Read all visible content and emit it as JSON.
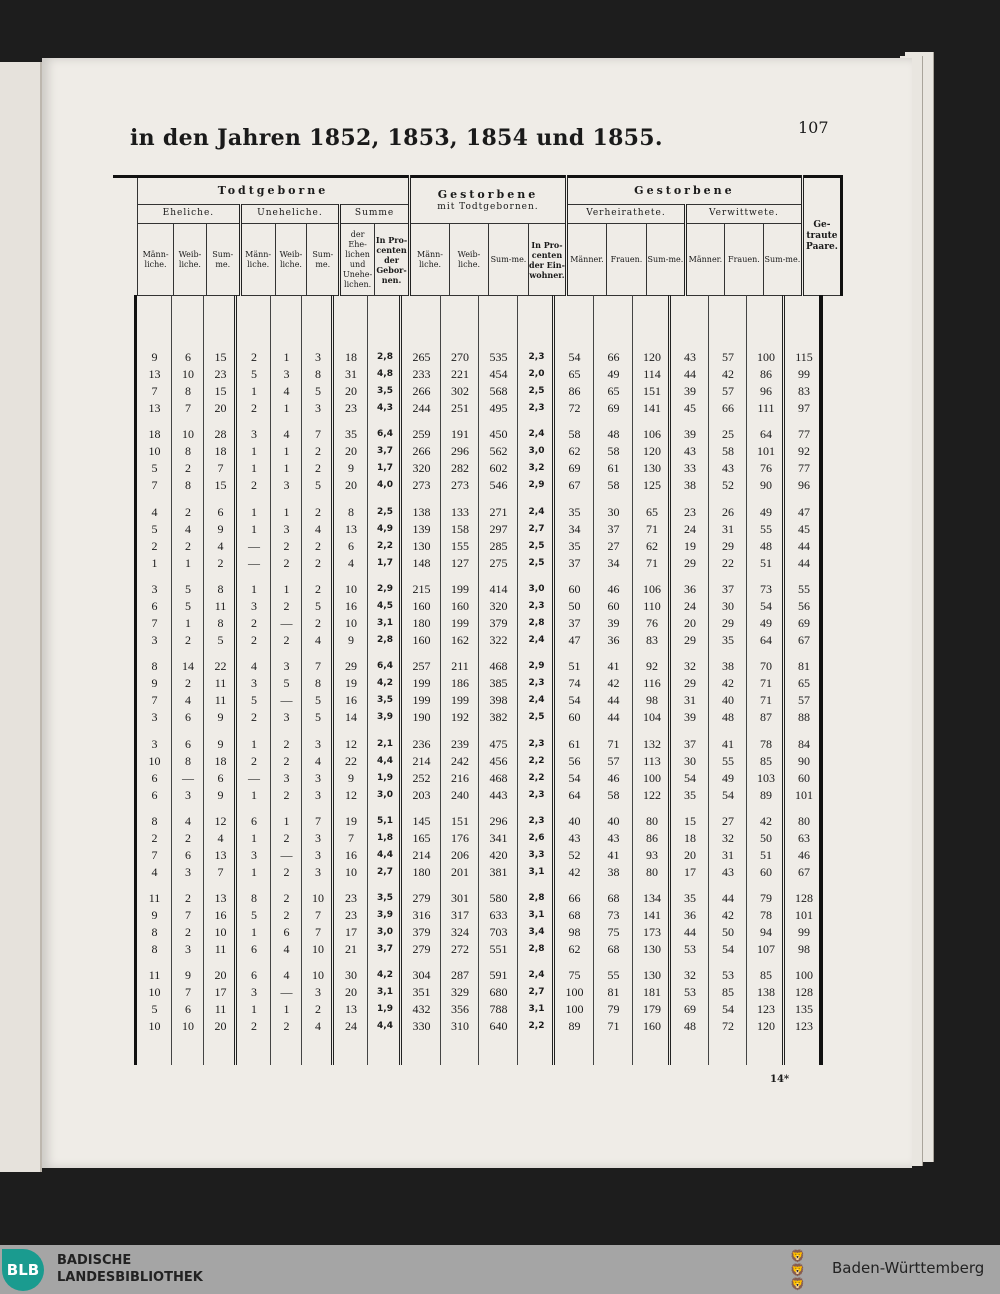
{
  "page": {
    "title": "in den Jahren 1852, 1853, 1854 und 1855.",
    "page_number": "107",
    "signature_mark": "14*"
  },
  "table": {
    "groups": {
      "todtgeborne": "Todtgeborne",
      "gestorbene_mit": "Gestorbene",
      "gestorbene_mit_sub": "mit Todtgebornen.",
      "gestorbene": "Gestorbene",
      "getraute": "Ge-traute Paare."
    },
    "subgroups": {
      "eheliche": "Eheliche.",
      "uneheliche": "Uneheliche.",
      "summe": "Summe",
      "verheirathete": "Verheirathete.",
      "verwittwete": "Verwittwete."
    },
    "columns": {
      "maennliche": "Männ-liche.",
      "weibliche": "Weib-liche.",
      "summe": "Sum-me.",
      "der_ehelichen": "der Ehe-lichen und Unehe-lichen.",
      "procent_geborenen": "In Pro-centen der Gebor-nen.",
      "procent_einwohner": "In Pro-centen der Ein-wohner.",
      "maenner": "Männer.",
      "frauen": "Frauen."
    },
    "rows": [
      [
        "9",
        "6",
        "15",
        "2",
        "1",
        "3",
        "18",
        "2,8",
        "265",
        "270",
        "535",
        "2,3",
        "54",
        "66",
        "120",
        "43",
        "57",
        "100",
        "115"
      ],
      [
        "13",
        "10",
        "23",
        "5",
        "3",
        "8",
        "31",
        "4,8",
        "233",
        "221",
        "454",
        "2,0",
        "65",
        "49",
        "114",
        "44",
        "42",
        "86",
        "99"
      ],
      [
        "7",
        "8",
        "15",
        "1",
        "4",
        "5",
        "20",
        "3,5",
        "266",
        "302",
        "568",
        "2,5",
        "86",
        "65",
        "151",
        "39",
        "57",
        "96",
        "83"
      ],
      [
        "13",
        "7",
        "20",
        "2",
        "1",
        "3",
        "23",
        "4,3",
        "244",
        "251",
        "495",
        "2,3",
        "72",
        "69",
        "141",
        "45",
        "66",
        "111",
        "97"
      ],
      [
        "18",
        "10",
        "28",
        "3",
        "4",
        "7",
        "35",
        "6,4",
        "259",
        "191",
        "450",
        "2,4",
        "58",
        "48",
        "106",
        "39",
        "25",
        "64",
        "77"
      ],
      [
        "10",
        "8",
        "18",
        "1",
        "1",
        "2",
        "20",
        "3,7",
        "266",
        "296",
        "562",
        "3,0",
        "62",
        "58",
        "120",
        "43",
        "58",
        "101",
        "92"
      ],
      [
        "5",
        "2",
        "7",
        "1",
        "1",
        "2",
        "9",
        "1,7",
        "320",
        "282",
        "602",
        "3,2",
        "69",
        "61",
        "130",
        "33",
        "43",
        "76",
        "77"
      ],
      [
        "7",
        "8",
        "15",
        "2",
        "3",
        "5",
        "20",
        "4,0",
        "273",
        "273",
        "546",
        "2,9",
        "67",
        "58",
        "125",
        "38",
        "52",
        "90",
        "96"
      ],
      [
        "4",
        "2",
        "6",
        "1",
        "1",
        "2",
        "8",
        "2,5",
        "138",
        "133",
        "271",
        "2,4",
        "35",
        "30",
        "65",
        "23",
        "26",
        "49",
        "47"
      ],
      [
        "5",
        "4",
        "9",
        "1",
        "3",
        "4",
        "13",
        "4,9",
        "139",
        "158",
        "297",
        "2,7",
        "34",
        "37",
        "71",
        "24",
        "31",
        "55",
        "45"
      ],
      [
        "2",
        "2",
        "4",
        "—",
        "2",
        "2",
        "6",
        "2,2",
        "130",
        "155",
        "285",
        "2,5",
        "35",
        "27",
        "62",
        "19",
        "29",
        "48",
        "44"
      ],
      [
        "1",
        "1",
        "2",
        "—",
        "2",
        "2",
        "4",
        "1,7",
        "148",
        "127",
        "275",
        "2,5",
        "37",
        "34",
        "71",
        "29",
        "22",
        "51",
        "44"
      ],
      [
        "3",
        "5",
        "8",
        "1",
        "1",
        "2",
        "10",
        "2,9",
        "215",
        "199",
        "414",
        "3,0",
        "60",
        "46",
        "106",
        "36",
        "37",
        "73",
        "55"
      ],
      [
        "6",
        "5",
        "11",
        "3",
        "2",
        "5",
        "16",
        "4,5",
        "160",
        "160",
        "320",
        "2,3",
        "50",
        "60",
        "110",
        "24",
        "30",
        "54",
        "56"
      ],
      [
        "7",
        "1",
        "8",
        "2",
        "—",
        "2",
        "10",
        "3,1",
        "180",
        "199",
        "379",
        "2,8",
        "37",
        "39",
        "76",
        "20",
        "29",
        "49",
        "69"
      ],
      [
        "3",
        "2",
        "5",
        "2",
        "2",
        "4",
        "9",
        "2,8",
        "160",
        "162",
        "322",
        "2,4",
        "47",
        "36",
        "83",
        "29",
        "35",
        "64",
        "67"
      ],
      [
        "8",
        "14",
        "22",
        "4",
        "3",
        "7",
        "29",
        "6,4",
        "257",
        "211",
        "468",
        "2,9",
        "51",
        "41",
        "92",
        "32",
        "38",
        "70",
        "81"
      ],
      [
        "9",
        "2",
        "11",
        "3",
        "5",
        "8",
        "19",
        "4,2",
        "199",
        "186",
        "385",
        "2,3",
        "74",
        "42",
        "116",
        "29",
        "42",
        "71",
        "65"
      ],
      [
        "7",
        "4",
        "11",
        "5",
        "—",
        "5",
        "16",
        "3,5",
        "199",
        "199",
        "398",
        "2,4",
        "54",
        "44",
        "98",
        "31",
        "40",
        "71",
        "57"
      ],
      [
        "3",
        "6",
        "9",
        "2",
        "3",
        "5",
        "14",
        "3,9",
        "190",
        "192",
        "382",
        "2,5",
        "60",
        "44",
        "104",
        "39",
        "48",
        "87",
        "88"
      ],
      [
        "3",
        "6",
        "9",
        "1",
        "2",
        "3",
        "12",
        "2,1",
        "236",
        "239",
        "475",
        "2,3",
        "61",
        "71",
        "132",
        "37",
        "41",
        "78",
        "84"
      ],
      [
        "10",
        "8",
        "18",
        "2",
        "2",
        "4",
        "22",
        "4,4",
        "214",
        "242",
        "456",
        "2,2",
        "56",
        "57",
        "113",
        "30",
        "55",
        "85",
        "90"
      ],
      [
        "6",
        "—",
        "6",
        "—",
        "3",
        "3",
        "9",
        "1,9",
        "252",
        "216",
        "468",
        "2,2",
        "54",
        "46",
        "100",
        "54",
        "49",
        "103",
        "60"
      ],
      [
        "6",
        "3",
        "9",
        "1",
        "2",
        "3",
        "12",
        "3,0",
        "203",
        "240",
        "443",
        "2,3",
        "64",
        "58",
        "122",
        "35",
        "54",
        "89",
        "101"
      ],
      [
        "8",
        "4",
        "12",
        "6",
        "1",
        "7",
        "19",
        "5,1",
        "145",
        "151",
        "296",
        "2,3",
        "40",
        "40",
        "80",
        "15",
        "27",
        "42",
        "80"
      ],
      [
        "2",
        "2",
        "4",
        "1",
        "2",
        "3",
        "7",
        "1,8",
        "165",
        "176",
        "341",
        "2,6",
        "43",
        "43",
        "86",
        "18",
        "32",
        "50",
        "63"
      ],
      [
        "7",
        "6",
        "13",
        "3",
        "—",
        "3",
        "16",
        "4,4",
        "214",
        "206",
        "420",
        "3,3",
        "52",
        "41",
        "93",
        "20",
        "31",
        "51",
        "46"
      ],
      [
        "4",
        "3",
        "7",
        "1",
        "2",
        "3",
        "10",
        "2,7",
        "180",
        "201",
        "381",
        "3,1",
        "42",
        "38",
        "80",
        "17",
        "43",
        "60",
        "67"
      ],
      [
        "11",
        "2",
        "13",
        "8",
        "2",
        "10",
        "23",
        "3,5",
        "279",
        "301",
        "580",
        "2,8",
        "66",
        "68",
        "134",
        "35",
        "44",
        "79",
        "128"
      ],
      [
        "9",
        "7",
        "16",
        "5",
        "2",
        "7",
        "23",
        "3,9",
        "316",
        "317",
        "633",
        "3,1",
        "68",
        "73",
        "141",
        "36",
        "42",
        "78",
        "101"
      ],
      [
        "8",
        "2",
        "10",
        "1",
        "6",
        "7",
        "17",
        "3,0",
        "379",
        "324",
        "703",
        "3,4",
        "98",
        "75",
        "173",
        "44",
        "50",
        "94",
        "99"
      ],
      [
        "8",
        "3",
        "11",
        "6",
        "4",
        "10",
        "21",
        "3,7",
        "279",
        "272",
        "551",
        "2,8",
        "62",
        "68",
        "130",
        "53",
        "54",
        "107",
        "98"
      ],
      [
        "11",
        "9",
        "20",
        "6",
        "4",
        "10",
        "30",
        "4,2",
        "304",
        "287",
        "591",
        "2,4",
        "75",
        "55",
        "130",
        "32",
        "53",
        "85",
        "100"
      ],
      [
        "10",
        "7",
        "17",
        "3",
        "—",
        "3",
        "20",
        "3,1",
        "351",
        "329",
        "680",
        "2,7",
        "100",
        "81",
        "181",
        "53",
        "85",
        "138",
        "128"
      ],
      [
        "5",
        "6",
        "11",
        "1",
        "1",
        "2",
        "13",
        "1,9",
        "432",
        "356",
        "788",
        "3,1",
        "100",
        "79",
        "179",
        "69",
        "54",
        "123",
        "135"
      ],
      [
        "10",
        "10",
        "20",
        "2",
        "2",
        "4",
        "24",
        "4,4",
        "330",
        "310",
        "640",
        "2,2",
        "89",
        "71",
        "160",
        "48",
        "72",
        "120",
        "123"
      ]
    ]
  },
  "footer": {
    "logo_text": "BLB",
    "library_line1": "BADISCHE",
    "library_line2": "LANDESBIBLIOTHEK",
    "state_name": "Baden-Württemberg",
    "state_icon": "lions-coat-of-arms-icon"
  }
}
